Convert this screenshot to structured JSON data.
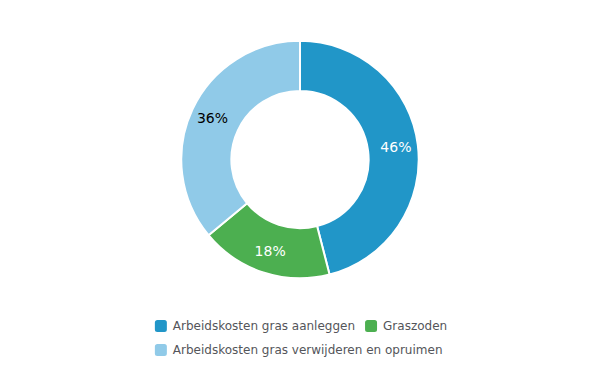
{
  "chart_data": {
    "type": "donut",
    "categories": [
      "Arbeidskosten gras aanleggen",
      "Graszoden",
      "Arbeidskosten gras verwijderen en opruimen"
    ],
    "values": [
      46,
      18,
      36
    ],
    "value_labels": [
      "46%",
      "18%",
      "36%"
    ],
    "colors": [
      "#2196C8",
      "#4CAF50",
      "#90CAE8"
    ],
    "data_labels": true,
    "legend": "bottom"
  }
}
